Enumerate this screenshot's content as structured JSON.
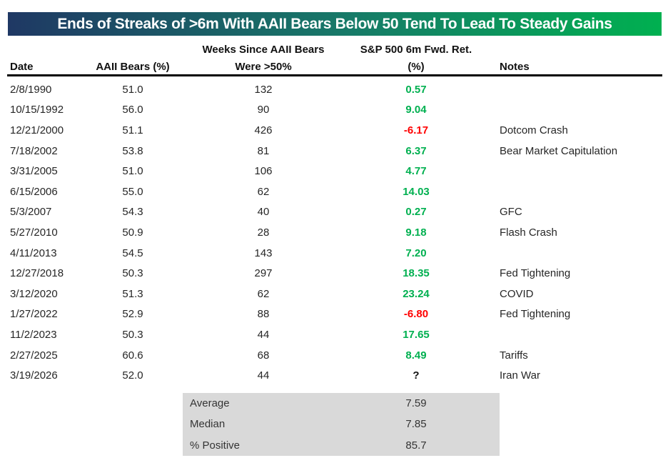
{
  "title": {
    "text": "Ends of Streaks of >6m With AAII Bears Below 50 Tend To Lead To Steady Gains"
  },
  "colors": {
    "title_gradient_left": "#1F3864",
    "title_gradient_mid": "#177A68",
    "title_gradient_right": "#00B050",
    "positive": "#00B050",
    "negative": "#FF0000",
    "summary_bg": "#D9D9D9"
  },
  "table": {
    "group_headers": {
      "weeks": "Weeks Since AAII Bears",
      "sp500": "S&P 500 6m Fwd. Ret."
    },
    "columns": {
      "date": "Date",
      "bears": "AAII Bears (%)",
      "weeks": "Were >50%",
      "ret": "(%)",
      "notes": "Notes"
    },
    "rows": [
      {
        "date": "2/8/1990",
        "bears": "51.0",
        "weeks": "132",
        "ret": "0.57",
        "notes": ""
      },
      {
        "date": "10/15/1992",
        "bears": "56.0",
        "weeks": "90",
        "ret": "9.04",
        "notes": ""
      },
      {
        "date": "12/21/2000",
        "bears": "51.1",
        "weeks": "426",
        "ret": "-6.17",
        "notes": "Dotcom Crash"
      },
      {
        "date": "7/18/2002",
        "bears": "53.8",
        "weeks": "81",
        "ret": "6.37",
        "notes": "Bear Market Capitulation"
      },
      {
        "date": "3/31/2005",
        "bears": "51.0",
        "weeks": "106",
        "ret": "4.77",
        "notes": ""
      },
      {
        "date": "6/15/2006",
        "bears": "55.0",
        "weeks": "62",
        "ret": "14.03",
        "notes": ""
      },
      {
        "date": "5/3/2007",
        "bears": "54.3",
        "weeks": "40",
        "ret": "0.27",
        "notes": "GFC"
      },
      {
        "date": "5/27/2010",
        "bears": "50.9",
        "weeks": "28",
        "ret": "9.18",
        "notes": "Flash Crash"
      },
      {
        "date": "4/11/2013",
        "bears": "54.5",
        "weeks": "143",
        "ret": "7.20",
        "notes": ""
      },
      {
        "date": "12/27/2018",
        "bears": "50.3",
        "weeks": "297",
        "ret": "18.35",
        "notes": "Fed Tightening"
      },
      {
        "date": "3/12/2020",
        "bears": "51.3",
        "weeks": "62",
        "ret": "23.24",
        "notes": "COVID"
      },
      {
        "date": "1/27/2022",
        "bears": "52.9",
        "weeks": "88",
        "ret": "-6.80",
        "notes": "Fed Tightening"
      },
      {
        "date": "11/2/2023",
        "bears": "50.3",
        "weeks": "44",
        "ret": "17.65",
        "notes": ""
      },
      {
        "date": "2/27/2025",
        "bears": "60.6",
        "weeks": "68",
        "ret": "8.49",
        "notes": "Tariffs"
      },
      {
        "date": "3/19/2026",
        "bears": "52.0",
        "weeks": "44",
        "ret": "?",
        "notes": "Iran War"
      }
    ],
    "summary": [
      {
        "label": "Average",
        "value": "7.59"
      },
      {
        "label": "Median",
        "value": "7.85"
      },
      {
        "label": "% Positive",
        "value": "85.7"
      }
    ]
  },
  "chart_data": {
    "type": "table",
    "title": "Ends of Streaks of >6m With AAII Bears Below 50 Tend To Lead To Steady Gains",
    "group_headers": [
      "Weeks Since AAII Bears",
      "S&P 500 6m Fwd. Ret."
    ],
    "columns": [
      "Date",
      "AAII Bears (%)",
      "Were >50%",
      "(%)",
      "Notes"
    ],
    "rows": [
      [
        "2/8/1990",
        51.0,
        132,
        0.57,
        ""
      ],
      [
        "10/15/1992",
        56.0,
        90,
        9.04,
        ""
      ],
      [
        "12/21/2000",
        51.1,
        426,
        -6.17,
        "Dotcom Crash"
      ],
      [
        "7/18/2002",
        53.8,
        81,
        6.37,
        "Bear Market Capitulation"
      ],
      [
        "3/31/2005",
        51.0,
        106,
        4.77,
        ""
      ],
      [
        "6/15/2006",
        55.0,
        62,
        14.03,
        ""
      ],
      [
        "5/3/2007",
        54.3,
        40,
        0.27,
        "GFC"
      ],
      [
        "5/27/2010",
        50.9,
        28,
        9.18,
        "Flash Crash"
      ],
      [
        "4/11/2013",
        54.5,
        143,
        7.2,
        ""
      ],
      [
        "12/27/2018",
        50.3,
        297,
        18.35,
        "Fed Tightening"
      ],
      [
        "3/12/2020",
        51.3,
        62,
        23.24,
        "COVID"
      ],
      [
        "1/27/2022",
        52.9,
        88,
        -6.8,
        "Fed Tightening"
      ],
      [
        "11/2/2023",
        50.3,
        44,
        17.65,
        ""
      ],
      [
        "2/27/2025",
        60.6,
        68,
        8.49,
        "Tariffs"
      ],
      [
        "3/19/2026",
        52.0,
        44,
        null,
        "Iran War"
      ]
    ],
    "summary": {
      "average": 7.59,
      "median": 7.85,
      "pct_positive": 85.7
    }
  }
}
